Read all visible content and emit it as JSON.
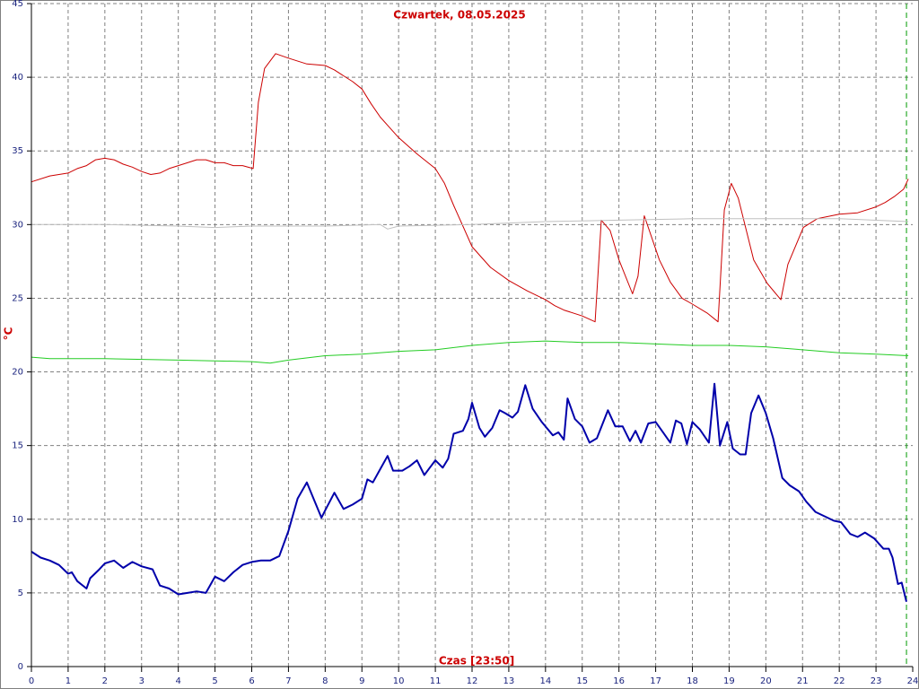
{
  "chart_data": {
    "type": "line",
    "title": "Czwartek, 08.05.2025",
    "ylabel": "°C",
    "xlabel": "Czas [23:50]",
    "xlim": [
      0,
      24
    ],
    "xticks": [
      0,
      1,
      2,
      3,
      4,
      5,
      6,
      7,
      8,
      9,
      10,
      11,
      12,
      13,
      14,
      15,
      16,
      17,
      18,
      19,
      20,
      21,
      22,
      23,
      24
    ],
    "ylim": [
      0,
      45
    ],
    "yticks": [
      0,
      5,
      10,
      15,
      20,
      25,
      30,
      35,
      40,
      45
    ],
    "grid": true,
    "marker_x": 23.83,
    "marker_color": "#009900",
    "series": [
      {
        "color": "#cc0000",
        "width": 1,
        "x": [
          0,
          0.5,
          0.75,
          1,
          1.25,
          1.5,
          1.75,
          2,
          2.25,
          2.5,
          2.75,
          3,
          3.25,
          3.5,
          3.75,
          4,
          4.25,
          4.5,
          4.75,
          5,
          5.25,
          5.5,
          5.75,
          6.04,
          6.18,
          6.35,
          6.65,
          7,
          7.5,
          8,
          8.25,
          8.5,
          8.75,
          9,
          9.25,
          9.5,
          9.75,
          10,
          10.5,
          11,
          11.25,
          11.5,
          11.75,
          12,
          12.25,
          12.5,
          13,
          13.5,
          14,
          14.25,
          14.5,
          15,
          15.35,
          15.52,
          15.76,
          16,
          16.37,
          16.52,
          16.69,
          17.1,
          17.4,
          17.72,
          18,
          18.4,
          18.7,
          18.87,
          19.06,
          19.25,
          19.67,
          20.04,
          20.41,
          20.6,
          21.02,
          21.4,
          22,
          22.5,
          23,
          23.25,
          23.5,
          23.75,
          23.88
        ],
        "values": [
          32.9,
          33.3,
          33.4,
          33.5,
          33.8,
          34,
          34.4,
          34.5,
          34.4,
          34.1,
          33.9,
          33.6,
          33.4,
          33.5,
          33.8,
          34,
          34.2,
          34.4,
          34.4,
          34.2,
          34.2,
          34,
          34,
          33.8,
          38.3,
          40.6,
          41.6,
          41.3,
          40.9,
          40.8,
          40.5,
          40.1,
          39.7,
          39.2,
          38.2,
          37.3,
          36.6,
          35.9,
          34.8,
          33.8,
          32.8,
          31.3,
          29.9,
          28.5,
          27.8,
          27.1,
          26.2,
          25.5,
          24.9,
          24.5,
          24.2,
          23.8,
          23.4,
          30.3,
          29.6,
          27.6,
          25.3,
          26.5,
          30.6,
          27.6,
          26.1,
          25,
          24.6,
          24,
          23.4,
          31,
          32.8,
          31.8,
          27.6,
          26,
          24.9,
          27.3,
          29.8,
          30.4,
          30.7,
          30.8,
          31.2,
          31.5,
          31.9,
          32.4,
          33.1
        ]
      },
      {
        "color": "#c0c0c0",
        "width": 1,
        "x": [
          0,
          2,
          4,
          5,
          6,
          8,
          9.5,
          9.7,
          10,
          12,
          14,
          16,
          18,
          20,
          22,
          23.88
        ],
        "values": [
          30,
          30,
          29.9,
          29.8,
          29.9,
          29.9,
          30,
          29.7,
          29.9,
          30,
          30.2,
          30.3,
          30.4,
          30.4,
          30.4,
          30.2
        ]
      },
      {
        "color": "#22cc22",
        "width": 1,
        "x": [
          0,
          0.5,
          2,
          4,
          6,
          6.5,
          7,
          8,
          9,
          10,
          11,
          12,
          13,
          14,
          15,
          16,
          17,
          18,
          19,
          20,
          21,
          22,
          23,
          23.88
        ],
        "values": [
          21,
          20.9,
          20.9,
          20.8,
          20.7,
          20.6,
          20.8,
          21.1,
          21.2,
          21.4,
          21.5,
          21.8,
          22,
          22.1,
          22,
          22,
          21.9,
          21.8,
          21.8,
          21.7,
          21.5,
          21.3,
          21.2,
          21.1
        ]
      },
      {
        "color": "#0000aa",
        "width": 2,
        "x": [
          0,
          0.25,
          0.5,
          0.75,
          1,
          1.1,
          1.25,
          1.5,
          1.6,
          1.85,
          2,
          2.25,
          2.5,
          2.75,
          3,
          3.3,
          3.5,
          3.75,
          4,
          4.25,
          4.5,
          4.75,
          5,
          5.25,
          5.5,
          5.75,
          6,
          6.25,
          6.5,
          6.75,
          7,
          7.25,
          7.5,
          7.75,
          7.9,
          8,
          8.25,
          8.5,
          8.75,
          9,
          9.15,
          9.3,
          9.5,
          9.7,
          9.85,
          10.1,
          10.3,
          10.5,
          10.7,
          10.85,
          11,
          11.2,
          11.35,
          11.5,
          11.75,
          11.9,
          12.0,
          12.2,
          12.35,
          12.55,
          12.75,
          12.9,
          13.1,
          13.25,
          13.45,
          13.65,
          13.9,
          14.2,
          14.35,
          14.5,
          14.6,
          14.8,
          15,
          15.2,
          15.4,
          15.7,
          15.9,
          16.1,
          16.3,
          16.45,
          16.6,
          16.8,
          17,
          17.2,
          17.4,
          17.55,
          17.7,
          17.85,
          18,
          18.2,
          18.45,
          18.6,
          18.75,
          18.95,
          19.1,
          19.3,
          19.45,
          19.6,
          19.8,
          20,
          20.2,
          20.45,
          20.65,
          20.9,
          21.1,
          21.35,
          21.6,
          21.85,
          22.05,
          22.3,
          22.5,
          22.7,
          22.95,
          23.2,
          23.35,
          23.45,
          23.6,
          23.7,
          23.83
        ],
        "values": [
          7.8,
          7.4,
          7.2,
          6.9,
          6.3,
          6.4,
          5.8,
          5.3,
          6,
          6.6,
          7,
          7.2,
          6.7,
          7.1,
          6.8,
          6.6,
          5.5,
          5.3,
          4.9,
          5,
          5.1,
          5,
          6.1,
          5.8,
          6.4,
          6.9,
          7.1,
          7.2,
          7.2,
          7.5,
          9.2,
          11.4,
          12.5,
          11,
          10.1,
          10.6,
          11.8,
          10.7,
          11,
          11.4,
          12.7,
          12.5,
          13.4,
          14.3,
          13.3,
          13.3,
          13.6,
          14,
          13,
          13.5,
          14,
          13.5,
          14.1,
          15.8,
          16,
          16.8,
          17.9,
          16.2,
          15.6,
          16.2,
          17.4,
          17.2,
          16.9,
          17.3,
          19.1,
          17.5,
          16.6,
          15.7,
          15.9,
          15.4,
          18.2,
          16.8,
          16.3,
          15.2,
          15.5,
          17.4,
          16.3,
          16.3,
          15.3,
          16,
          15.2,
          16.5,
          16.6,
          15.9,
          15.2,
          16.7,
          16.5,
          15.1,
          16.6,
          16.1,
          15.2,
          19.2,
          15,
          16.6,
          14.8,
          14.4,
          14.4,
          17.2,
          18.4,
          17.2,
          15.5,
          12.8,
          12.3,
          11.9,
          11.2,
          10.5,
          10.2,
          9.9,
          9.8,
          9,
          8.8,
          9.1,
          8.7,
          8,
          8,
          7.4,
          5.6,
          5.7,
          4.4
        ]
      }
    ]
  }
}
